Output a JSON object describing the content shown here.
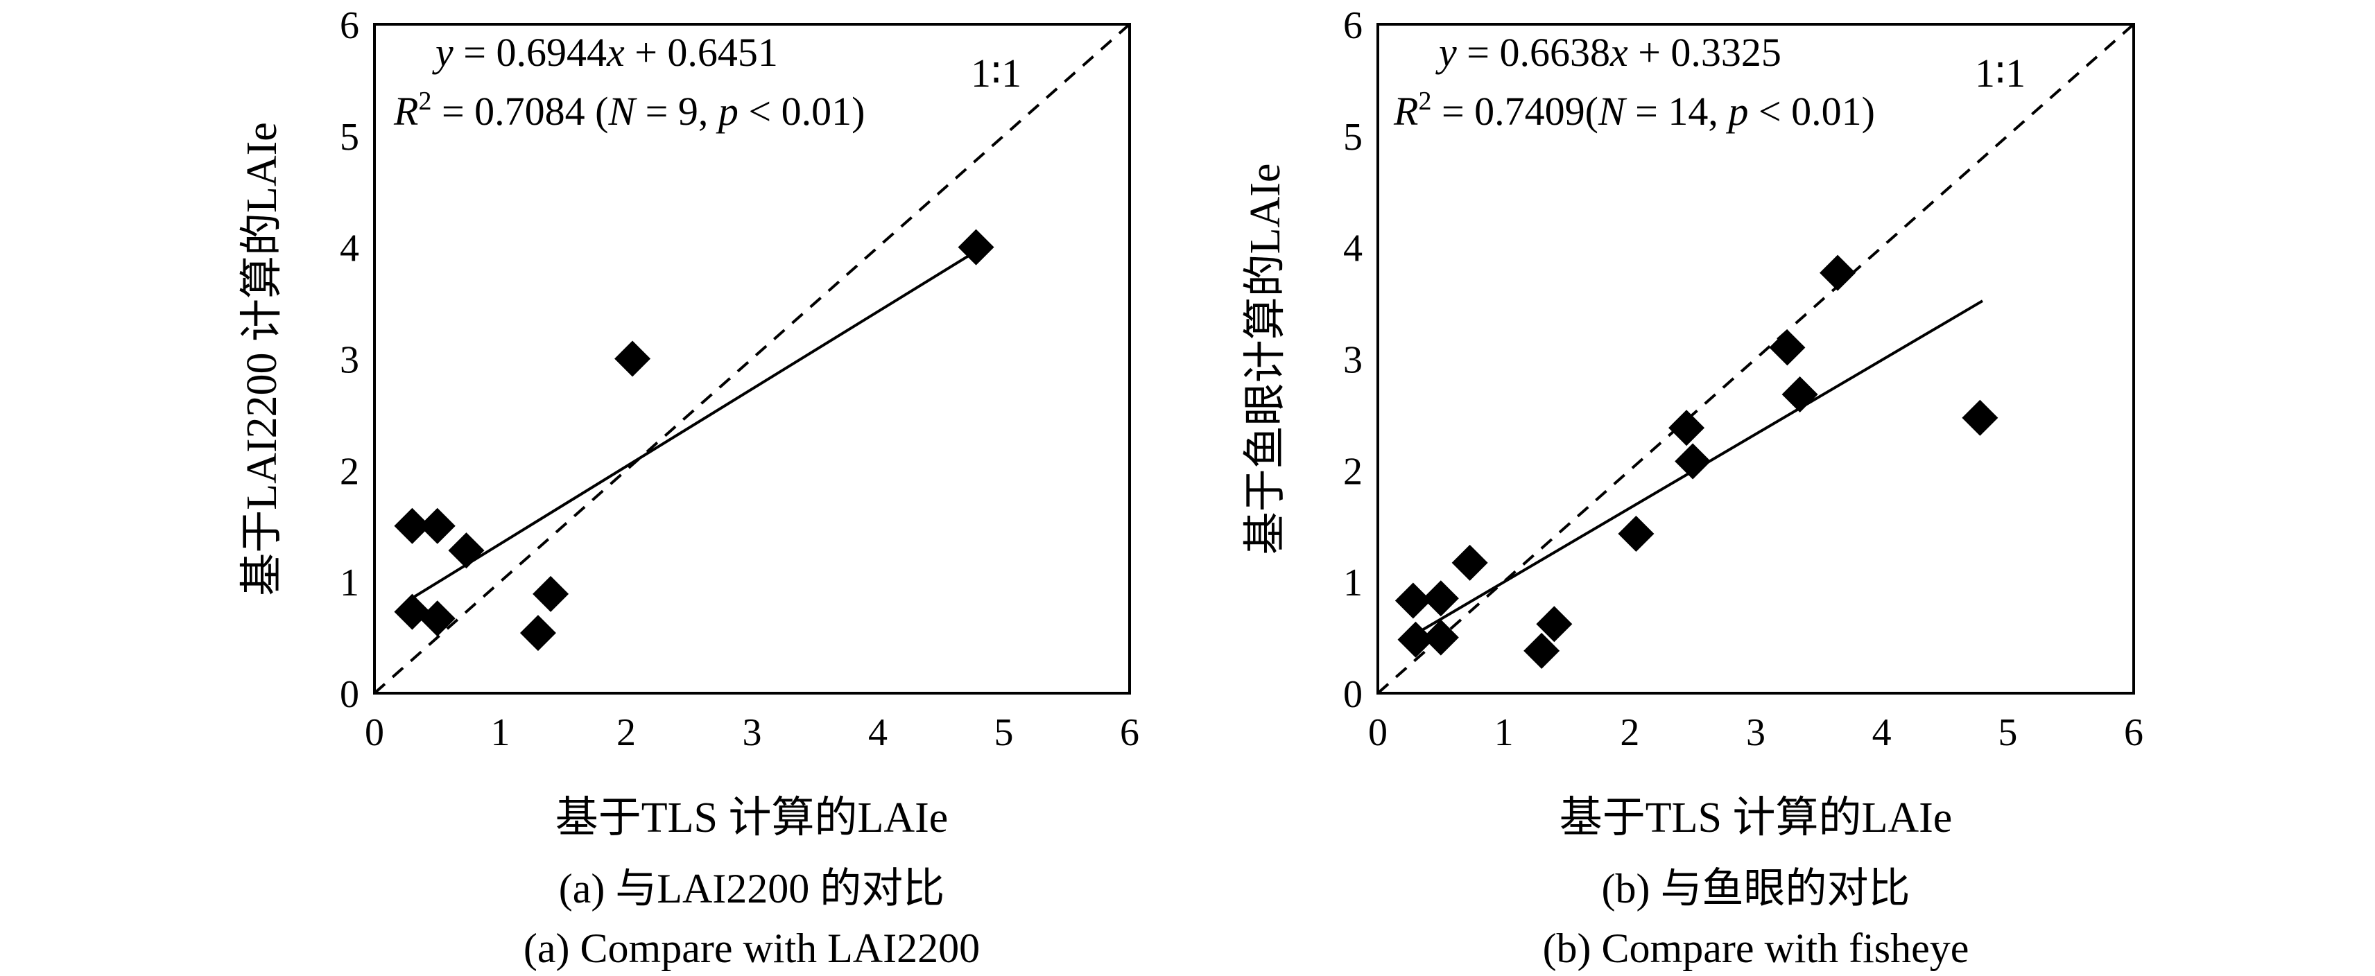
{
  "chart_data": [
    {
      "type": "scatter",
      "panel_id": "a",
      "xlabel": "基于TLS 计算的LAIe",
      "ylabel": "基于LAI2200 计算的LAIe",
      "xlim": [
        0,
        6
      ],
      "ylim": [
        0,
        6
      ],
      "xticks": [
        "0",
        "1",
        "2",
        "3",
        "4",
        "5",
        "6"
      ],
      "yticks": [
        "0",
        "1",
        "2",
        "3",
        "4",
        "5",
        "6"
      ],
      "one_to_one_label": "1∶1",
      "equation": {
        "y_var": "y",
        "eq_rhs": " = 0.6944",
        "x_var": "x",
        "eq_tail": " + 0.6451",
        "r_var": "R",
        "r_sup": "2",
        "r2_mid": " = 0.7084 (",
        "n_var": "N",
        "n_mid": " = 9, ",
        "p_var": "p",
        "p_tail": " < 0.01)"
      },
      "slope": 0.6944,
      "intercept": 0.6451,
      "fit_range": [
        0.28,
        4.78
      ],
      "points": [
        {
          "x": 0.3,
          "y": 1.5
        },
        {
          "x": 0.5,
          "y": 1.5
        },
        {
          "x": 0.73,
          "y": 1.28
        },
        {
          "x": 0.3,
          "y": 0.73
        },
        {
          "x": 0.5,
          "y": 0.67
        },
        {
          "x": 1.3,
          "y": 0.54
        },
        {
          "x": 1.4,
          "y": 0.89
        },
        {
          "x": 2.05,
          "y": 3.0
        },
        {
          "x": 4.78,
          "y": 4.0
        }
      ],
      "caption_cn": "(a) 与LAI2200 的对比",
      "caption_en": "(a) Compare with LAI2200"
    },
    {
      "type": "scatter",
      "panel_id": "b",
      "xlabel": "基于TLS 计算的LAIe",
      "ylabel": "基于鱼眼计算的LAIe",
      "xlim": [
        0,
        6
      ],
      "ylim": [
        0,
        6
      ],
      "xticks": [
        "0",
        "1",
        "2",
        "3",
        "4",
        "5",
        "6"
      ],
      "yticks": [
        "0",
        "1",
        "2",
        "3",
        "4",
        "5",
        "6"
      ],
      "one_to_one_label": "1∶1",
      "equation": {
        "y_var": "y",
        "eq_rhs": " = 0.6638",
        "x_var": "x",
        "eq_tail": " + 0.3325",
        "r_var": "R",
        "r_sup": "2",
        "r2_mid": " = 0.7409(",
        "n_var": "N",
        "n_mid": " = 14, ",
        "p_var": "p",
        "p_tail": " < 0.01)"
      },
      "slope": 0.6638,
      "intercept": 0.3325,
      "fit_range": [
        0.35,
        4.8
      ],
      "points": [
        {
          "x": 0.28,
          "y": 0.83
        },
        {
          "x": 0.5,
          "y": 0.85
        },
        {
          "x": 0.3,
          "y": 0.48
        },
        {
          "x": 0.5,
          "y": 0.5
        },
        {
          "x": 0.73,
          "y": 1.17
        },
        {
          "x": 1.3,
          "y": 0.38
        },
        {
          "x": 1.4,
          "y": 0.62
        },
        {
          "x": 2.05,
          "y": 1.43
        },
        {
          "x": 2.45,
          "y": 2.38
        },
        {
          "x": 2.5,
          "y": 2.08
        },
        {
          "x": 3.25,
          "y": 3.1
        },
        {
          "x": 3.35,
          "y": 2.68
        },
        {
          "x": 3.65,
          "y": 3.77
        },
        {
          "x": 4.78,
          "y": 2.47
        }
      ],
      "caption_cn": "(b) 与鱼眼的对比",
      "caption_en": "(b) Compare with fisheye"
    }
  ]
}
